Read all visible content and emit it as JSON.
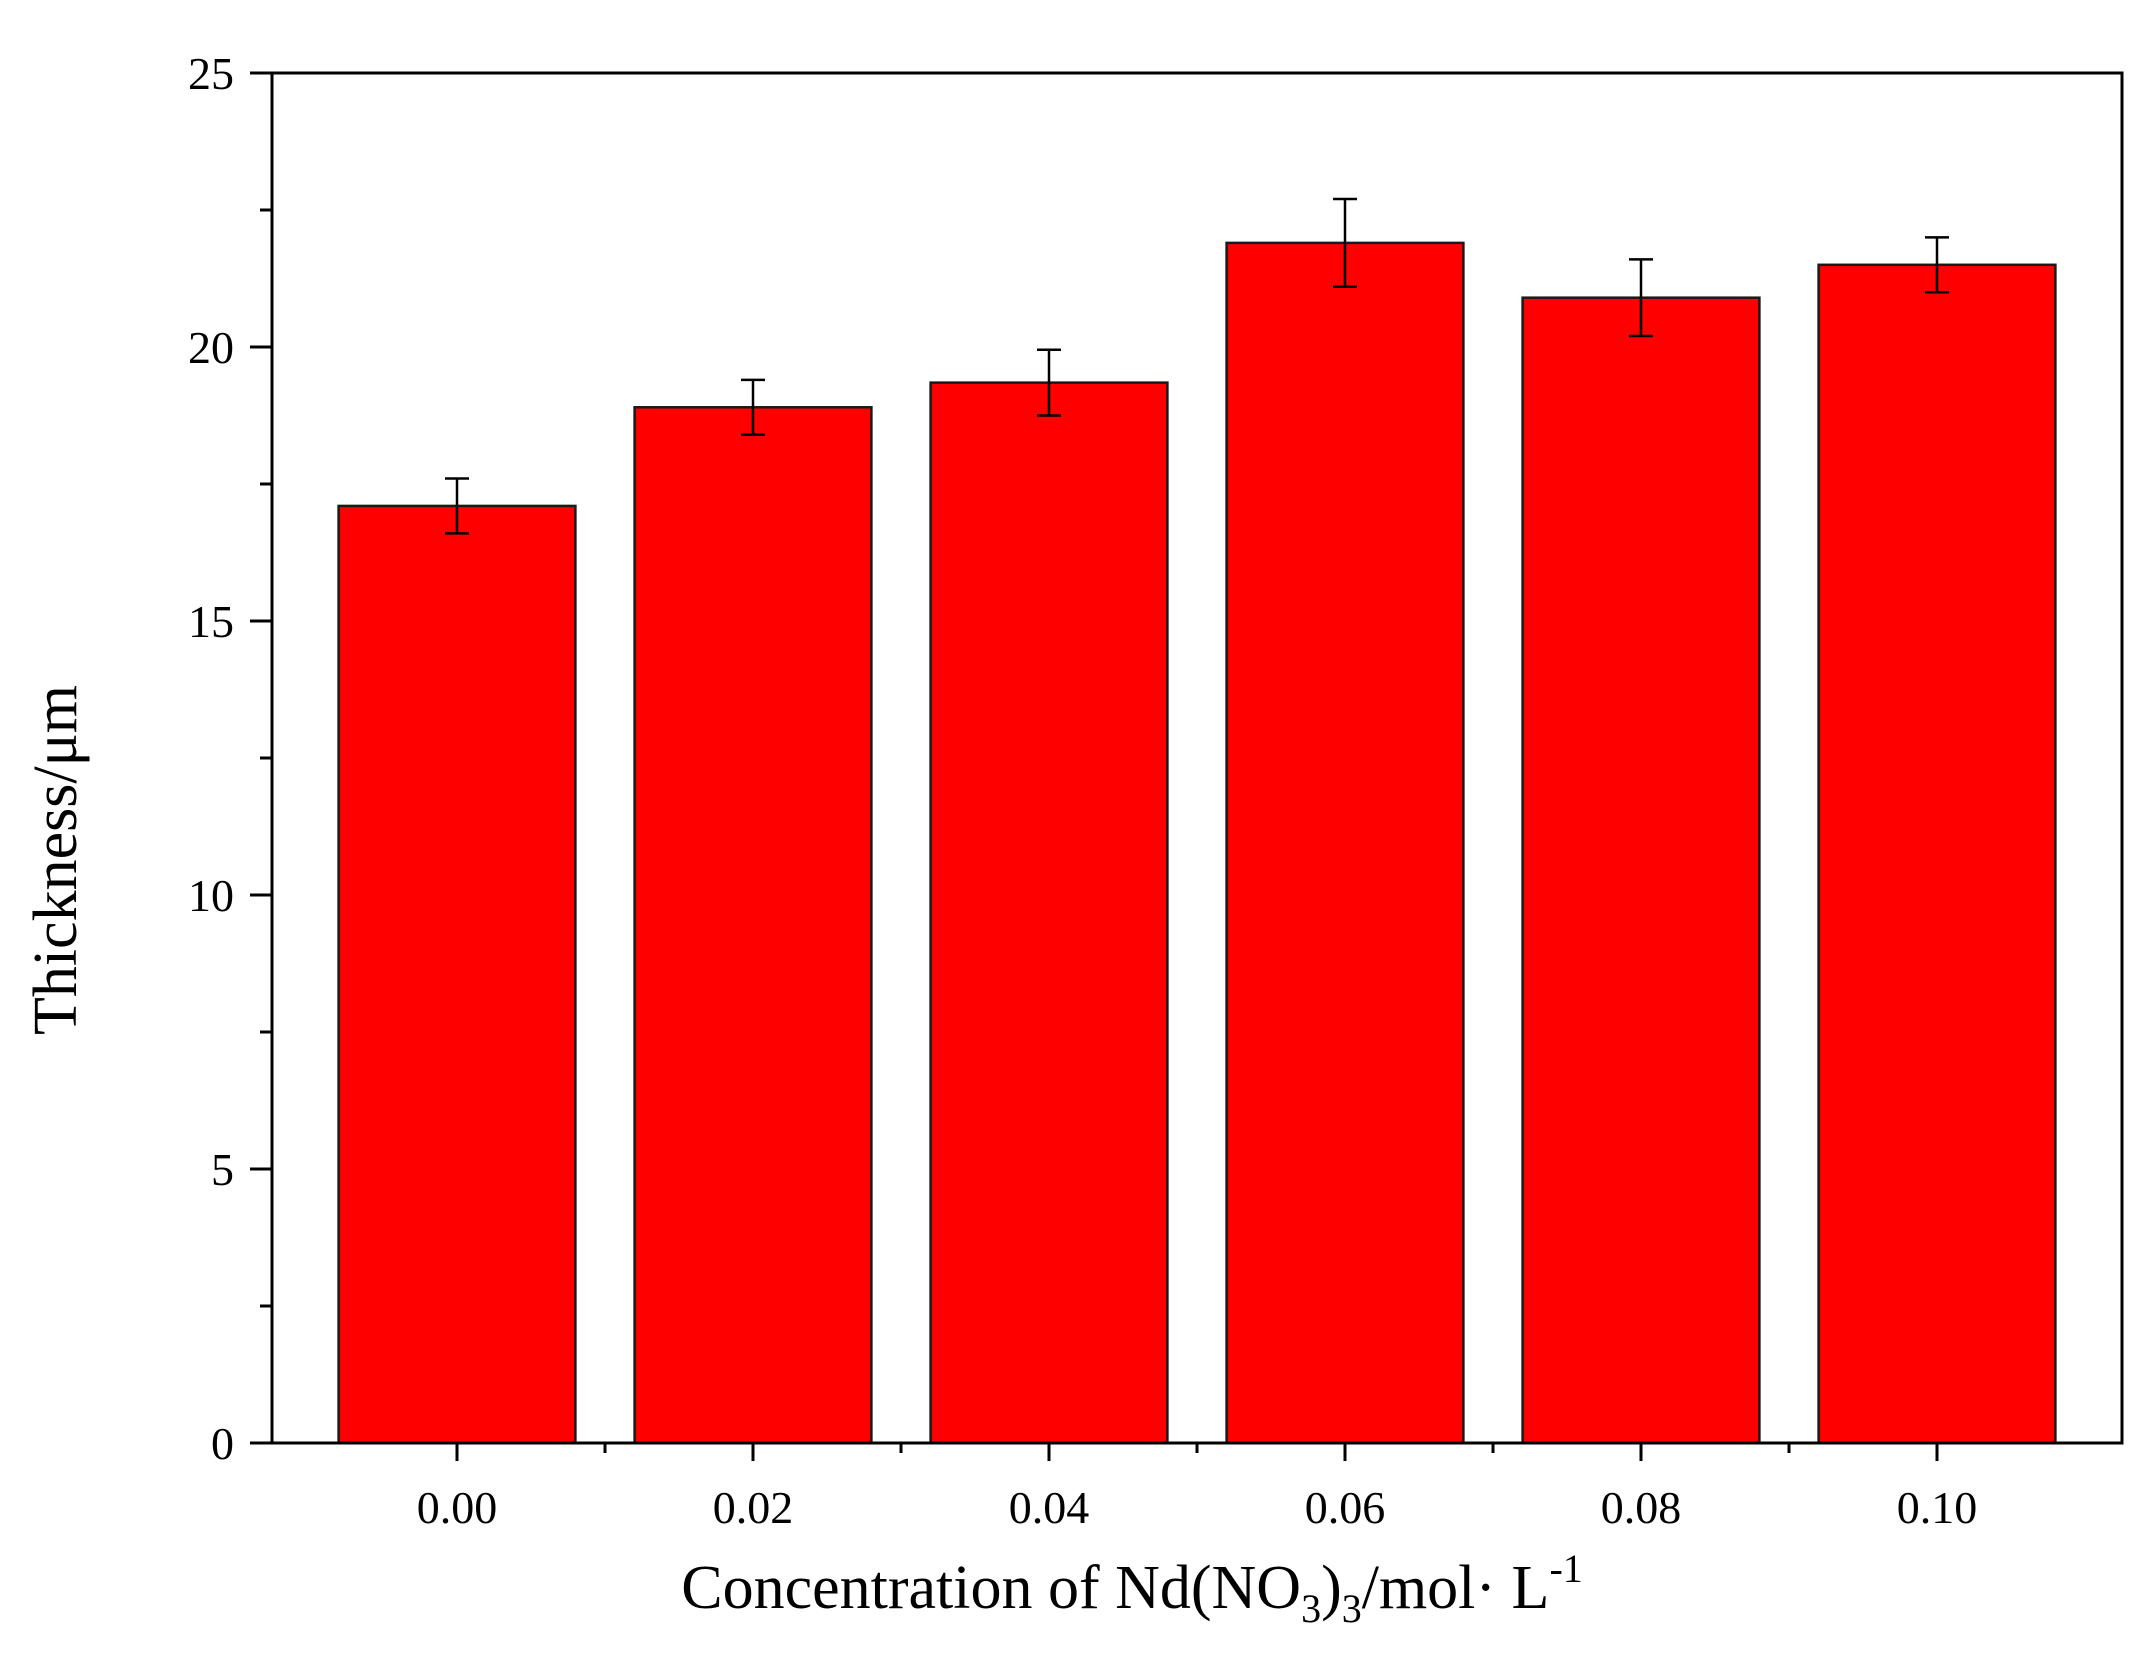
{
  "chart_data": {
    "type": "bar",
    "categories": [
      "0.00",
      "0.02",
      "0.04",
      "0.06",
      "0.08",
      "0.10"
    ],
    "values": [
      17.1,
      18.9,
      19.35,
      21.9,
      20.9,
      21.5
    ],
    "errors": [
      0.5,
      0.5,
      0.6,
      0.8,
      0.7,
      0.5
    ],
    "ylim": [
      0,
      25
    ],
    "yticks": [
      "0",
      "5",
      "10",
      "15",
      "20",
      "25"
    ],
    "ylabel": "Thickness/μm",
    "xlabel": {
      "prefix": "Concentration of Nd(NO",
      "sub1": "3",
      "mid": ")",
      "sub2": "3",
      "suffix": "/mol· L",
      "sup": "-1"
    },
    "bar_color": "#ff0000",
    "grid": false
  }
}
